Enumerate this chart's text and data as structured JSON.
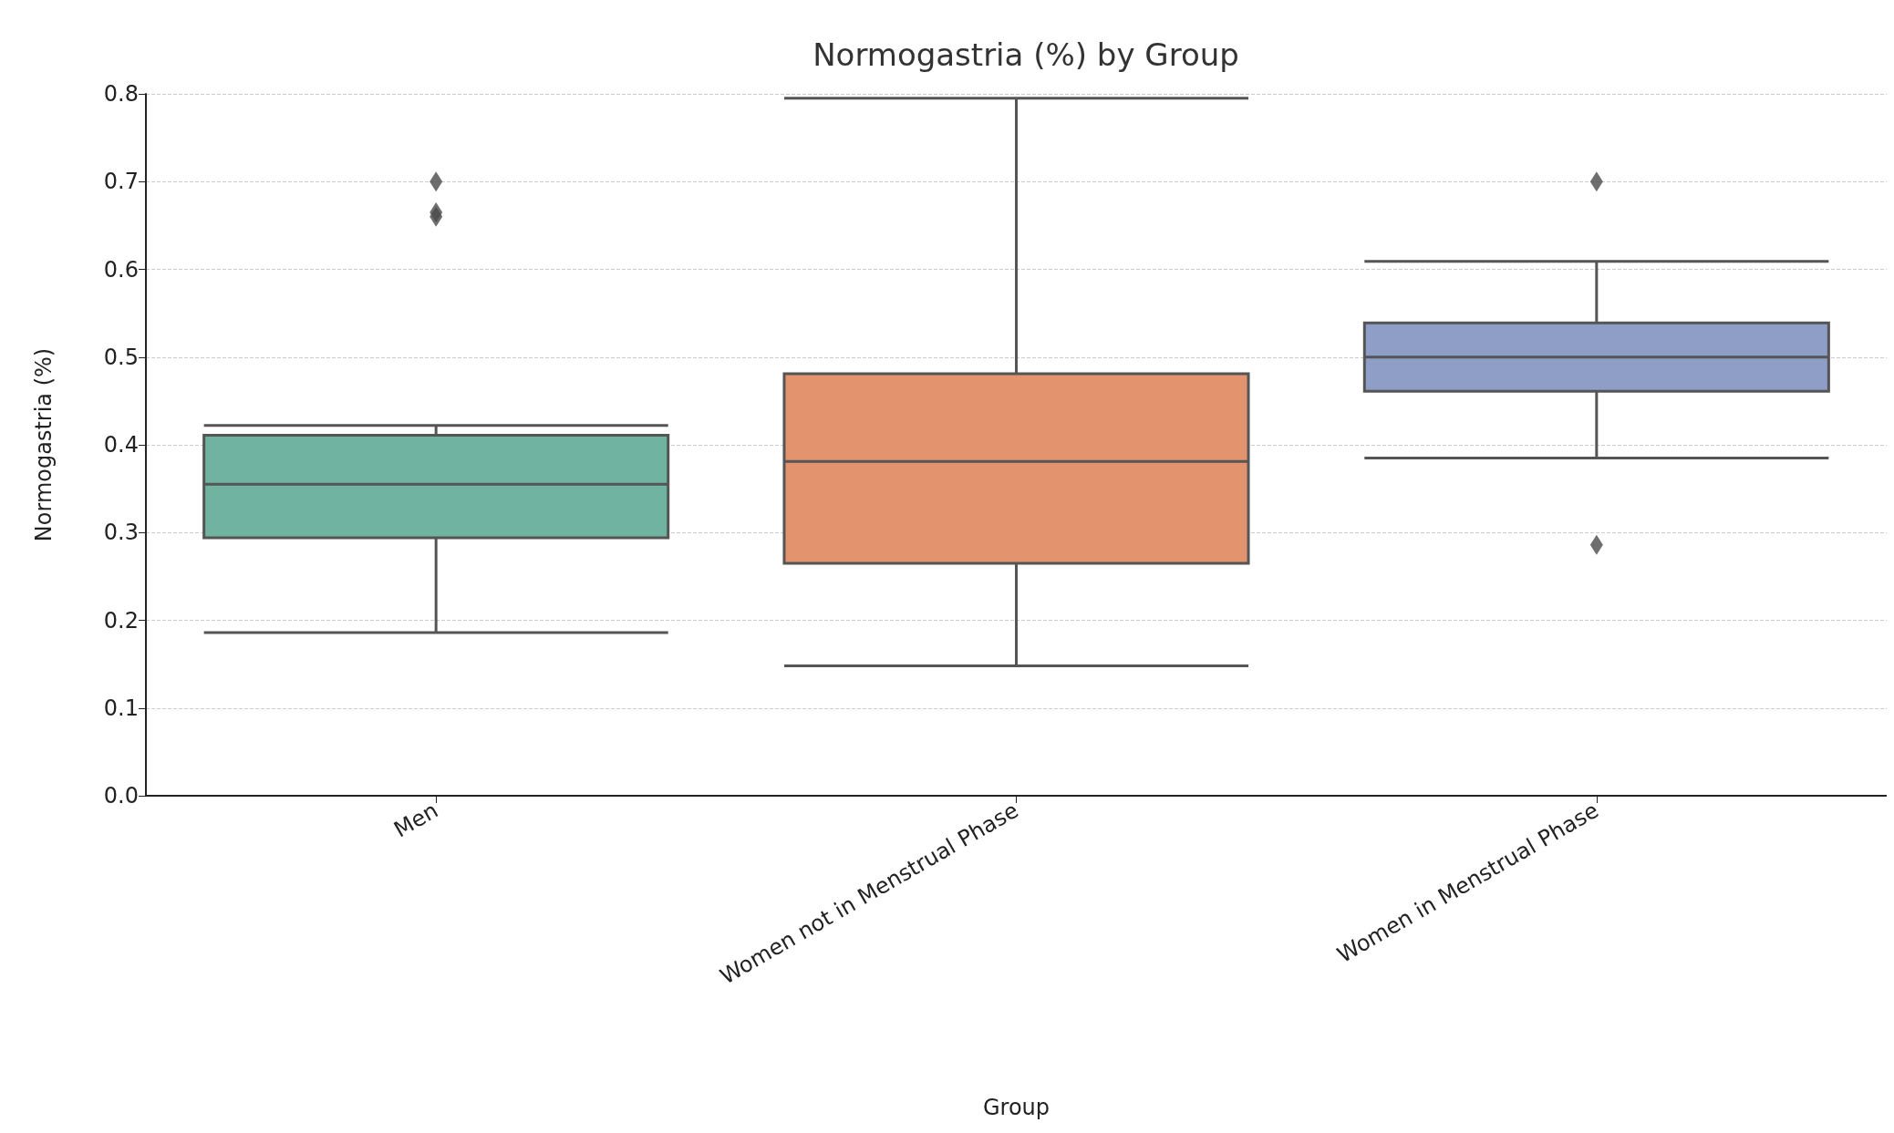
{
  "chart_data": {
    "type": "box",
    "title": "Normogastria (%) by Group",
    "xlabel": "Group",
    "ylabel": "Normogastria (%)",
    "categories": [
      "Men",
      "Women not in Menstrual Phase",
      "Women in Menstrual Phase"
    ],
    "colors": [
      "#6fb3a0",
      "#e4936f",
      "#8e9ec7"
    ],
    "boxes": [
      {
        "low": 0.186,
        "q1": 0.294,
        "median": 0.355,
        "q3": 0.411,
        "high": 0.422,
        "outliers": [
          0.7,
          0.665,
          0.66
        ]
      },
      {
        "low": 0.148,
        "q1": 0.265,
        "median": 0.381,
        "q3": 0.481,
        "high": 0.795
      },
      {
        "low": 0.385,
        "q1": 0.461,
        "median": 0.5,
        "q3": 0.539,
        "high": 0.609,
        "outliers": [
          0.7,
          0.286
        ]
      }
    ],
    "ylim": [
      0,
      0.8
    ],
    "yticks": [
      {
        "value": 0,
        "label": "0.0"
      },
      0.1,
      0.2,
      0.3,
      0.4,
      0.5,
      0.6,
      0.7,
      0.8
    ],
    "grid": "y",
    "marker": "diamond"
  }
}
